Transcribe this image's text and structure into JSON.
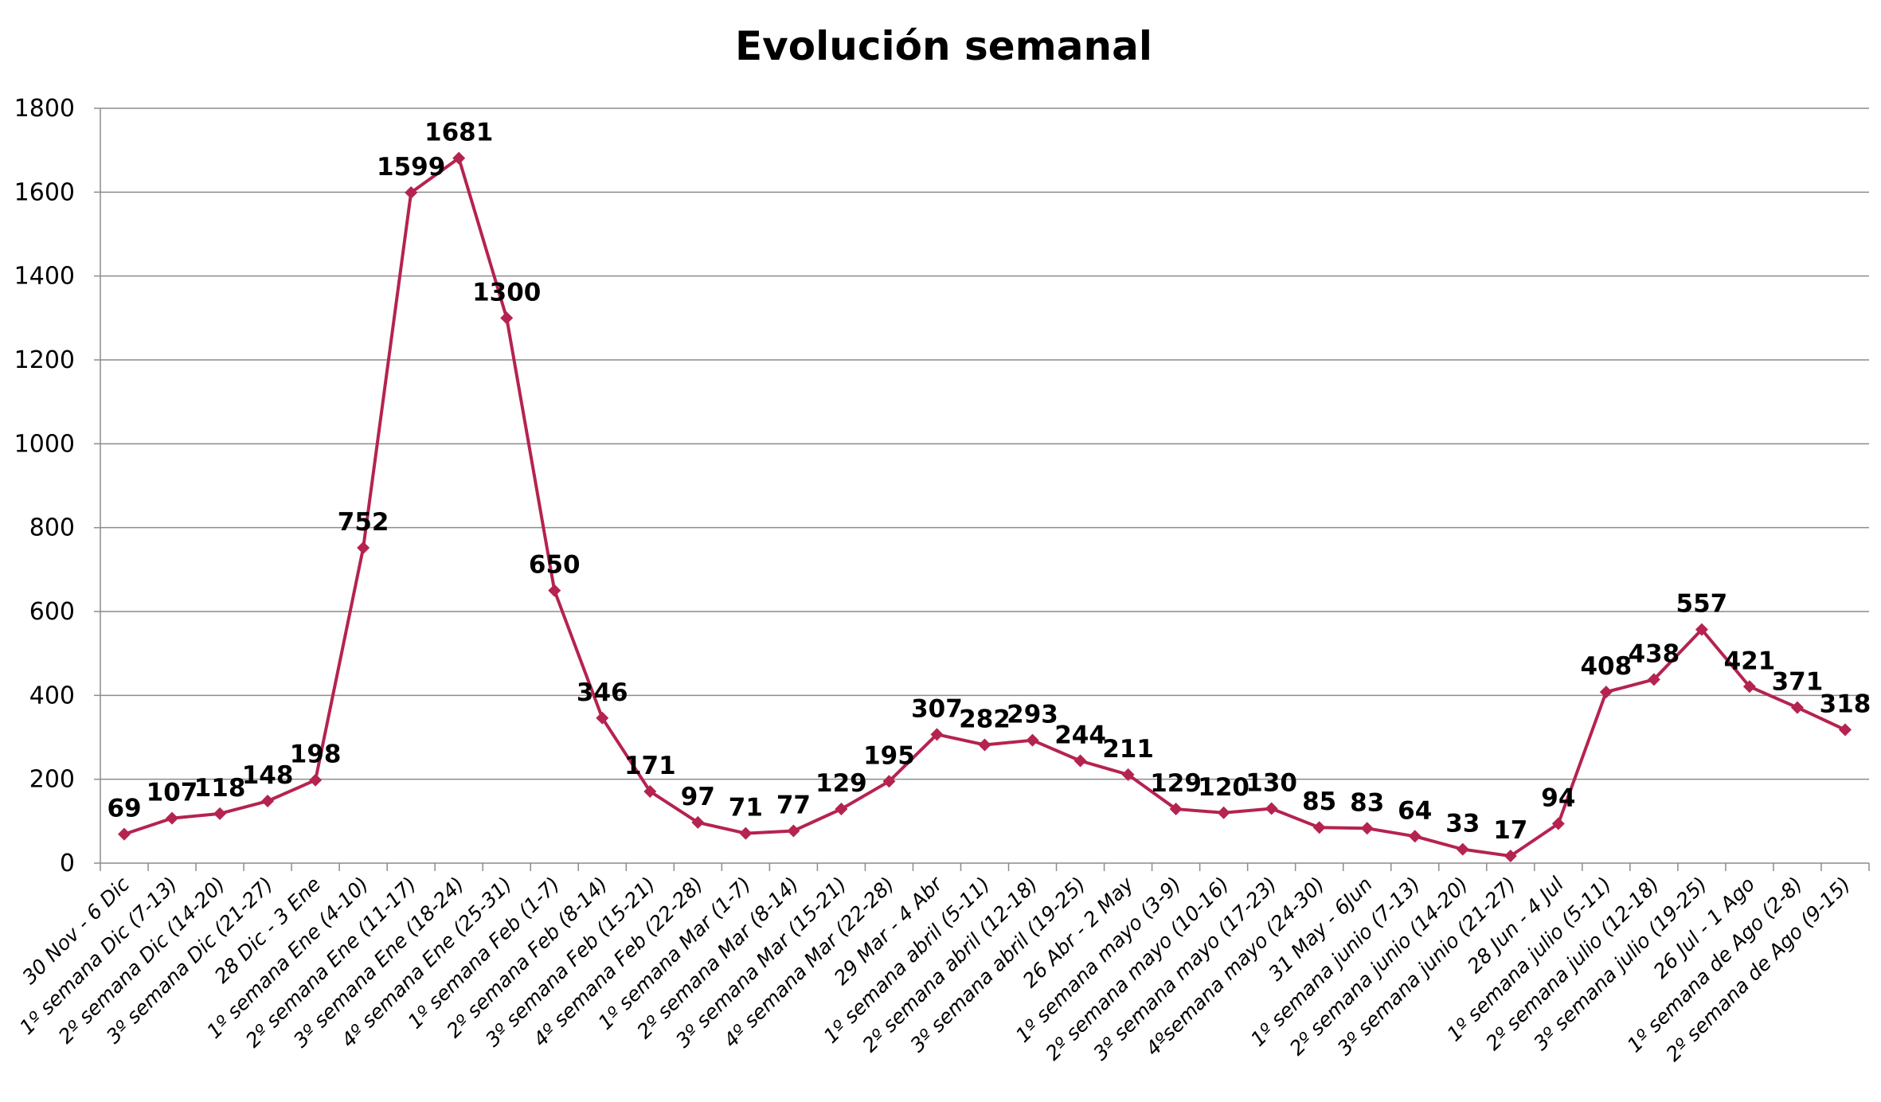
{
  "chart_data": {
    "type": "line",
    "title": "Evolución semanal",
    "xlabel": "",
    "ylabel": "",
    "ylim": [
      0,
      1800
    ],
    "yticks": [
      0,
      200,
      400,
      600,
      800,
      1000,
      1200,
      1400,
      1600,
      1800
    ],
    "grid": true,
    "legend": "none",
    "line_color": "#b5234f",
    "categories": [
      "30 Nov - 6 Dic",
      "1º semana  Dic (7-13)",
      "2º semana  Dic (14-20)",
      "3º semana  Dic (21-27)",
      "28 Dic - 3 Ene",
      "1º semana  Ene (4-10)",
      "2º semana  Ene (11-17)",
      "3º semana  Ene (18-24)",
      "4º semana  Ene (25-31)",
      "1º semana  Feb (1-7)",
      "2º semana  Feb (8-14)",
      "3º semana  Feb (15-21)",
      "4º semana  Feb (22-28)",
      "1º semana  Mar (1-7)",
      "2º semana  Mar (8-14)",
      "3º semana  Mar (15-21)",
      "4º semana  Mar (22-28)",
      "29 Mar - 4 Abr",
      "1º semana  abril (5-11)",
      "2º semana  abril (12-18)",
      "3º semana  abril (19-25)",
      "26 Abr - 2 May",
      "1º semana  mayo (3-9)",
      "2º semana  mayo (10-16)",
      "3º semana  mayo (17-23)",
      "4ºsemana mayo (24-30)",
      "31 May - 6Jun",
      "1º semana  junio (7-13)",
      "2º semana  junio (14-20)",
      "3º semana  junio (21-27)",
      "28 Jun - 4 Jul",
      "1º semana  julio (5-11)",
      "2º semana  julio (12-18)",
      "3º semana  julio (19-25)",
      "26 Jul - 1 Ago",
      "1º semana  de Ago (2-8)",
      "2º semana  de Ago (9-15)"
    ],
    "values": [
      69,
      107,
      118,
      148,
      198,
      752,
      1599,
      1681,
      1300,
      650,
      346,
      171,
      97,
      71,
      77,
      129,
      195,
      307,
      282,
      293,
      244,
      211,
      129,
      120,
      130,
      85,
      83,
      64,
      33,
      17,
      94,
      408,
      438,
      557,
      421,
      371,
      318
    ]
  }
}
